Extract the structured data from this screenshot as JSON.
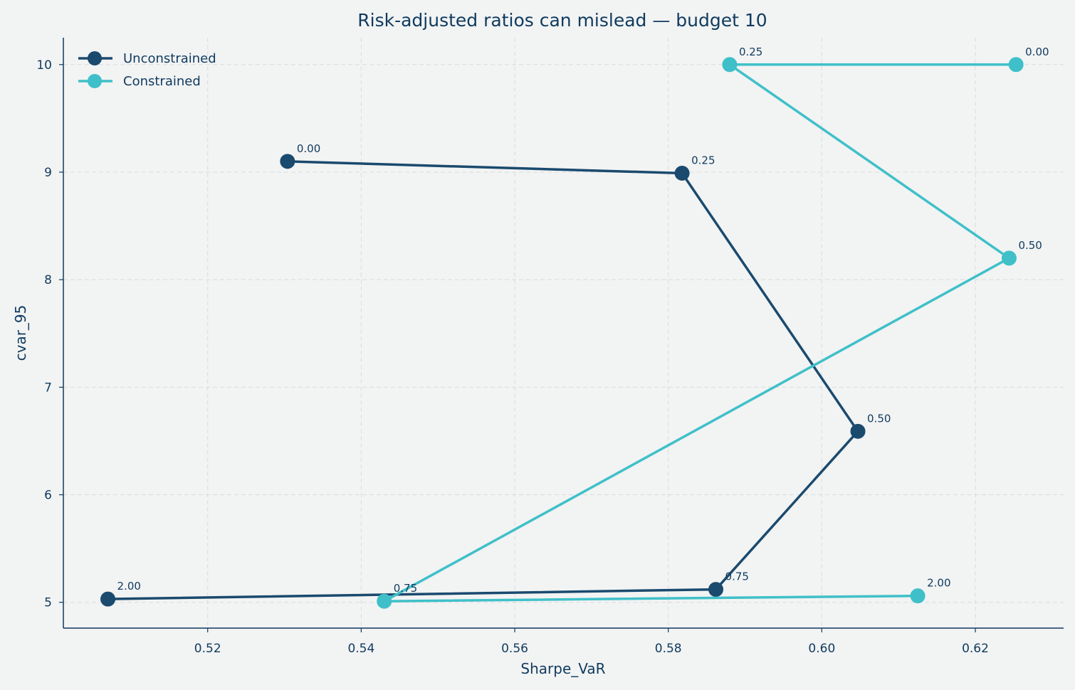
{
  "chart_data": {
    "type": "line",
    "title": "Risk-adjusted ratios can mislead — budget 10",
    "xlabel": "Sharpe_VaR",
    "ylabel": "cvar_95",
    "xlim": [
      0.5012,
      0.6315
    ],
    "ylim": [
      4.76,
      10.25
    ],
    "xticks": [
      0.52,
      0.54,
      0.56,
      0.58,
      0.6,
      0.62
    ],
    "xtick_labels": [
      "0.52",
      "0.54",
      "0.56",
      "0.58",
      "0.60",
      "0.62"
    ],
    "yticks": [
      5,
      6,
      7,
      8,
      9,
      10
    ],
    "ytick_labels": [
      "5",
      "6",
      "7",
      "8",
      "9",
      "10"
    ],
    "grid": true,
    "legend_position": "top-left",
    "series": [
      {
        "name": "Unconstrained",
        "color": "#1a4a6e",
        "points": [
          {
            "x": 0.5304,
            "y": 9.1,
            "label": "0.00"
          },
          {
            "x": 0.5818,
            "y": 8.99,
            "label": "0.25"
          },
          {
            "x": 0.6047,
            "y": 6.59,
            "label": "0.50"
          },
          {
            "x": 0.5862,
            "y": 5.12,
            "label": "0.75"
          },
          {
            "x": 0.507,
            "y": 5.03,
            "label": "2.00"
          }
        ]
      },
      {
        "name": "Constrained",
        "color": "#3fc0c9",
        "points": [
          {
            "x": 0.6253,
            "y": 10.0,
            "label": "0.00"
          },
          {
            "x": 0.588,
            "y": 10.0,
            "label": "0.25"
          },
          {
            "x": 0.6244,
            "y": 8.2,
            "label": "0.50"
          },
          {
            "x": 0.543,
            "y": 5.01,
            "label": "0.75"
          },
          {
            "x": 0.6125,
            "y": 5.06,
            "label": "2.00"
          }
        ]
      }
    ]
  }
}
